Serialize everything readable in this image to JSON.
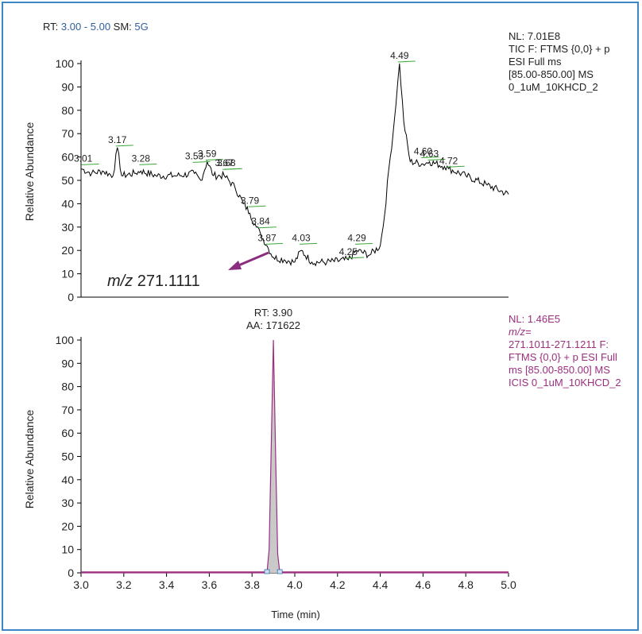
{
  "header": {
    "rt_label": "RT: ",
    "rt_range": "3.00 - 5.00",
    "sm_label": " SM: ",
    "sm_value": "5G"
  },
  "colors": {
    "frame": "#3d86c6",
    "header_value": "#2f5f9e",
    "tic_line": "#000000",
    "peak_label_marker": "#3aa83a",
    "xic_info": "#9c2f7f",
    "arrow": "#8a2d7e",
    "peak_fill": "#c9c9c9",
    "baseline": "#9c2f7f"
  },
  "top_info": [
    "NL: 7.01E8",
    "TIC F: FTMS {0,0}  + p",
    "ESI Full ms",
    "[85.00-850.00]  MS",
    "0_1uM_10KHCD_2"
  ],
  "bottom_info": [
    "NL: 1.46E5",
    "m/z=",
    "271.1011-271.1211 F:",
    "FTMS {0,0}  + p ESI Full",
    "ms [85.00-850.00]  MS",
    "ICIS 0_1uM_10KHCD_2"
  ],
  "annotation": {
    "mz_prefix": "m/z",
    "mz_value": " 271.1111"
  },
  "bottom_peak": {
    "rt_text": "RT: 3.90",
    "aa_text": "AA: 171622"
  },
  "chart_data": [
    {
      "type": "line",
      "ylabel": "Relative Abundance",
      "xlim": [
        3.0,
        5.0
      ],
      "ylim": [
        0,
        100
      ],
      "yticks": [
        0,
        10,
        20,
        30,
        40,
        50,
        60,
        70,
        80,
        90,
        100
      ],
      "series": [
        {
          "x": [
            3.0,
            3.05,
            3.1,
            3.15,
            3.17,
            3.19,
            3.25,
            3.28,
            3.35,
            3.45,
            3.53,
            3.56,
            3.59,
            3.62,
            3.67,
            3.72,
            3.76,
            3.79,
            3.82,
            3.84,
            3.87,
            3.9,
            3.95,
            4.0,
            4.03,
            4.08,
            4.15,
            4.25,
            4.29,
            4.35,
            4.4,
            4.42,
            4.44,
            4.46,
            4.48,
            4.49,
            4.51,
            4.54,
            4.6,
            4.63,
            4.7,
            4.72,
            4.8,
            4.9,
            5.0
          ],
          "y": [
            55,
            53,
            54,
            52,
            64,
            52,
            53,
            54,
            52,
            52,
            53,
            50,
            58,
            52,
            52,
            47,
            40,
            36,
            30,
            27,
            22,
            17,
            16,
            15,
            20,
            15,
            15,
            16,
            20,
            18,
            22,
            35,
            55,
            70,
            90,
            100,
            75,
            58,
            57,
            58,
            56,
            55,
            52,
            48,
            44
          ]
        }
      ],
      "peak_labels": [
        {
          "x": 3.01,
          "y": 56,
          "label": "3.01"
        },
        {
          "x": 3.17,
          "y": 64,
          "label": "3.17"
        },
        {
          "x": 3.28,
          "y": 56,
          "label": "3.28"
        },
        {
          "x": 3.53,
          "y": 57,
          "label": "3.53"
        },
        {
          "x": 3.59,
          "y": 58,
          "label": "3.59"
        },
        {
          "x": 3.67,
          "y": 54,
          "label": "3.67"
        },
        {
          "x": 3.68,
          "y": 54,
          "label": "3.68"
        },
        {
          "x": 3.79,
          "y": 38,
          "label": "3.79"
        },
        {
          "x": 3.84,
          "y": 29,
          "label": "3.84"
        },
        {
          "x": 3.87,
          "y": 22,
          "label": "3.87"
        },
        {
          "x": 4.03,
          "y": 22,
          "label": "4.03"
        },
        {
          "x": 4.25,
          "y": 16,
          "label": "4.25"
        },
        {
          "x": 4.29,
          "y": 22,
          "label": "4.29"
        },
        {
          "x": 4.49,
          "y": 100,
          "label": "4.49"
        },
        {
          "x": 4.6,
          "y": 59,
          "label": "4.60"
        },
        {
          "x": 4.63,
          "y": 58,
          "label": "4.63"
        },
        {
          "x": 4.72,
          "y": 55,
          "label": "4.72"
        }
      ]
    },
    {
      "type": "line",
      "xlabel": "Time (min)",
      "ylabel": "Relative Abundance",
      "xlim": [
        3.0,
        5.0
      ],
      "ylim": [
        0,
        100
      ],
      "xticks": [
        "3.0",
        "3.2",
        "3.4",
        "3.6",
        "3.8",
        "4.0",
        "4.2",
        "4.4",
        "4.6",
        "4.8",
        "5.0"
      ],
      "yticks": [
        0,
        10,
        20,
        30,
        40,
        50,
        60,
        70,
        80,
        90,
        100
      ],
      "series": [
        {
          "x": [
            3.0,
            3.87,
            3.88,
            3.89,
            3.9,
            3.91,
            3.92,
            3.93,
            5.0
          ],
          "y": [
            0,
            0,
            10,
            55,
            100,
            52,
            8,
            0,
            0
          ]
        }
      ],
      "peak_apex": {
        "x": 3.9,
        "y": 100
      }
    }
  ]
}
